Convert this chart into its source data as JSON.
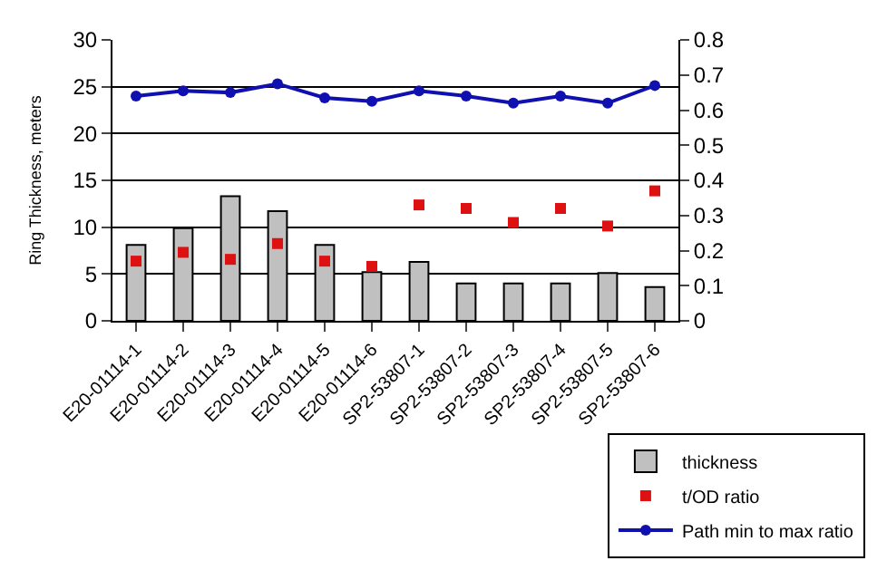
{
  "chart_data": {
    "type": "bar",
    "ylabel": "Ring Thickness, meters",
    "categories": [
      "E20-01114-1",
      "E20-01114-2",
      "E20-01114-3",
      "E20-01114-4",
      "E20-01114-5",
      "E20-01114-6",
      "SP2-53807-1",
      "SP2-53807-2",
      "SP2-53807-3",
      "SP2-53807-4",
      "SP2-53807-5",
      "SP2-53807-6"
    ],
    "series": [
      {
        "name": "thickness",
        "color": "#c0c0c0",
        "values": [
          8.1,
          9.9,
          13.3,
          11.7,
          8.1,
          5.2,
          6.3,
          4.0,
          4.0,
          4.0,
          5.1,
          3.6
        ]
      },
      {
        "name": "t/OD ratio",
        "type": "scatter",
        "axis": "y2",
        "color": "#dd1111",
        "marker": "square",
        "values": [
          0.17,
          0.195,
          0.175,
          0.22,
          0.17,
          0.155,
          0.33,
          0.32,
          0.28,
          0.32,
          0.27,
          0.37
        ]
      },
      {
        "name": "Path min to max ratio",
        "type": "line",
        "axis": "y2",
        "color": "#1010b0",
        "marker": "circle",
        "values": [
          0.64,
          0.655,
          0.65,
          0.675,
          0.635,
          0.625,
          0.655,
          0.64,
          0.62,
          0.64,
          0.62,
          0.67
        ]
      }
    ],
    "ylim": [
      0,
      30
    ],
    "yticks": [
      0,
      5,
      10,
      15,
      20,
      25,
      30
    ],
    "y2lim": [
      0,
      0.8
    ],
    "y2ticks": [
      0,
      0.1,
      0.2,
      0.3,
      0.4,
      0.5,
      0.6,
      0.7,
      0.8
    ],
    "grid": "y",
    "legend": "bottom right"
  }
}
